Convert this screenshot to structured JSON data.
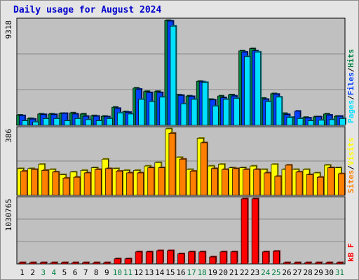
{
  "title": "Daily usage for August 2024",
  "colors": {
    "background": "#c0c0c0",
    "hits": "#008040",
    "files": "#0040ff",
    "pages": "#00e0ff",
    "visits": "#ffff00",
    "sites": "#ff8000",
    "kbytes": "#ff0000",
    "weekday": "#000000",
    "weekend": "#008040",
    "title": "#0000cc"
  },
  "chart_data": {
    "type": "bar",
    "categories": [
      "1",
      "2",
      "3",
      "4",
      "5",
      "6",
      "7",
      "8",
      "9",
      "10",
      "11",
      "12",
      "13",
      "14",
      "15",
      "16",
      "17",
      "18",
      "19",
      "20",
      "21",
      "22",
      "23",
      "24",
      "25",
      "26",
      "27",
      "28",
      "29",
      "30",
      "31"
    ],
    "weekend_days": [
      "3",
      "4",
      "10",
      "11",
      "17",
      "18",
      "24",
      "25",
      "31"
    ],
    "panels": [
      {
        "id": "top",
        "max_label": "9318",
        "ymax": 9318,
        "legend": [
          {
            "text": "Pages",
            "color_key": "pages"
          },
          {
            "text": "/",
            "color_key": "weekday"
          },
          {
            "text": "Files",
            "color_key": "files"
          },
          {
            "text": "/",
            "color_key": "weekday"
          },
          {
            "text": "Hits",
            "color_key": "hits"
          }
        ],
        "series": [
          {
            "name": "Hits",
            "color_key": "hits",
            "values": [
              900,
              600,
              1000,
              1000,
              1050,
              1100,
              1000,
              850,
              800,
              1600,
              1200,
              3300,
              3000,
              3000,
              9300,
              2700,
              2600,
              3900,
              2300,
              2600,
              2700,
              6600,
              6800,
              2400,
              2800,
              1050,
              700,
              700,
              750,
              1000,
              800
            ]
          },
          {
            "name": "Files",
            "color_key": "files",
            "values": [
              850,
              550,
              950,
              950,
              1050,
              1000,
              800,
              800,
              750,
              1500,
              1150,
              3200,
              2900,
              2900,
              9250,
              2650,
              2550,
              3850,
              2250,
              2450,
              2600,
              6500,
              6600,
              2300,
              2750,
              950,
              1250,
              650,
              750,
              900,
              800
            ]
          },
          {
            "name": "Pages",
            "color_key": "pages",
            "values": [
              400,
              300,
              600,
              600,
              400,
              600,
              500,
              400,
              600,
              1100,
              1000,
              2300,
              2100,
              2500,
              8800,
              1900,
              2300,
              3800,
              1700,
              2300,
              2400,
              6100,
              6500,
              2100,
              2500,
              700,
              600,
              400,
              450,
              500,
              600
            ]
          }
        ]
      },
      {
        "id": "middle",
        "max_label": "386",
        "ymax": 386,
        "legend": [
          {
            "text": "Sites",
            "color_key": "sites"
          },
          {
            "text": "/",
            "color_key": "weekday"
          },
          {
            "text": "Visits",
            "color_key": "visits"
          }
        ],
        "series": [
          {
            "name": "Visits",
            "color_key": "visits",
            "values": [
              155,
              155,
              180,
              150,
              120,
              135,
              145,
              160,
              210,
              155,
              145,
              145,
              170,
              190,
              386,
              220,
              150,
              331,
              170,
              180,
              160,
              160,
              170,
              150,
              180,
              150,
              150,
              150,
              130,
              175,
              160
            ]
          },
          {
            "name": "Sites",
            "color_key": "sites",
            "values": [
              140,
              150,
              145,
              135,
              100,
              105,
              130,
              150,
              155,
              140,
              130,
              130,
              160,
              160,
              360,
              210,
              140,
              305,
              155,
              150,
              155,
              150,
              150,
              130,
              110,
              175,
              135,
              120,
              105,
              160,
              125
            ]
          }
        ]
      },
      {
        "id": "bottom",
        "max_label": "1030765",
        "ymax": 1030765,
        "legend": [
          {
            "text": "kB F",
            "color_key": "kbytes"
          }
        ],
        "series": [
          {
            "name": "kB F",
            "color_key": "kbytes",
            "values": [
              20000,
              20000,
              20000,
              20000,
              20000,
              20000,
              20000,
              20000,
              20000,
              80000,
              80000,
              190000,
              190000,
              210000,
              210000,
              160000,
              190000,
              190000,
              110000,
              190000,
              190000,
              1030765,
              1030765,
              190000,
              200000,
              20000,
              20000,
              20000,
              20000,
              20000,
              20000
            ]
          }
        ]
      }
    ]
  }
}
